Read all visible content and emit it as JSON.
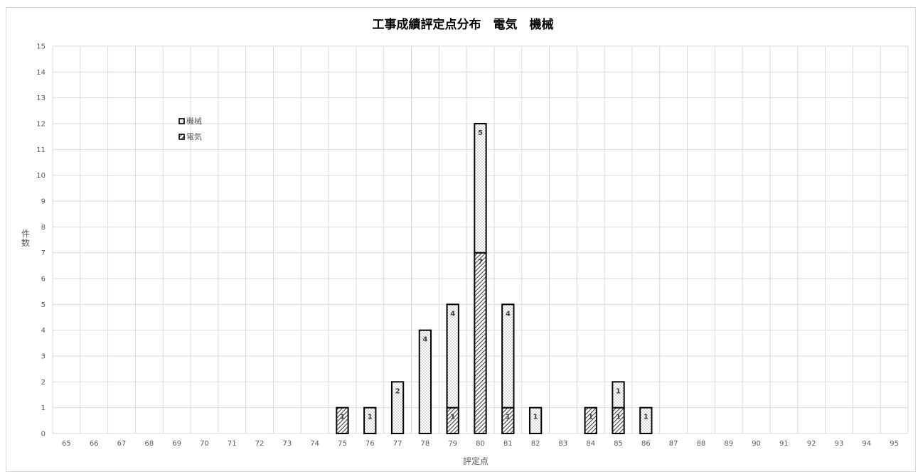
{
  "chart_data": {
    "type": "bar",
    "stacked": true,
    "title": "工事成績評定点分布　電気　機械",
    "xlabel": "評定点",
    "ylabel": "件数",
    "ylim": [
      0,
      15
    ],
    "categories": [
      "65",
      "66",
      "67",
      "68",
      "69",
      "70",
      "71",
      "72",
      "73",
      "74",
      "75",
      "76",
      "77",
      "78",
      "79",
      "80",
      "81",
      "82",
      "83",
      "84",
      "85",
      "86",
      "87",
      "88",
      "89",
      "90",
      "91",
      "92",
      "93",
      "94",
      "95"
    ],
    "series": [
      {
        "name": "電気",
        "pattern": "diagonal-hatch",
        "values": [
          0,
          0,
          0,
          0,
          0,
          0,
          0,
          0,
          0,
          0,
          1,
          0,
          0,
          0,
          1,
          7,
          1,
          0,
          0,
          1,
          1,
          0,
          0,
          0,
          0,
          0,
          0,
          0,
          0,
          0,
          0
        ]
      },
      {
        "name": "機械",
        "pattern": "dots",
        "values": [
          0,
          0,
          0,
          0,
          0,
          0,
          0,
          0,
          0,
          0,
          0,
          1,
          2,
          4,
          4,
          5,
          4,
          1,
          0,
          0,
          1,
          1,
          0,
          0,
          0,
          0,
          0,
          0,
          0,
          0,
          0
        ]
      }
    ],
    "legend": [
      "機械",
      "電気"
    ],
    "legend_position": "top-left",
    "grid": true,
    "colors": {
      "border": "#000000",
      "grid": "#d9d9d9",
      "hatch": "#404040",
      "dots": "#808080"
    }
  }
}
